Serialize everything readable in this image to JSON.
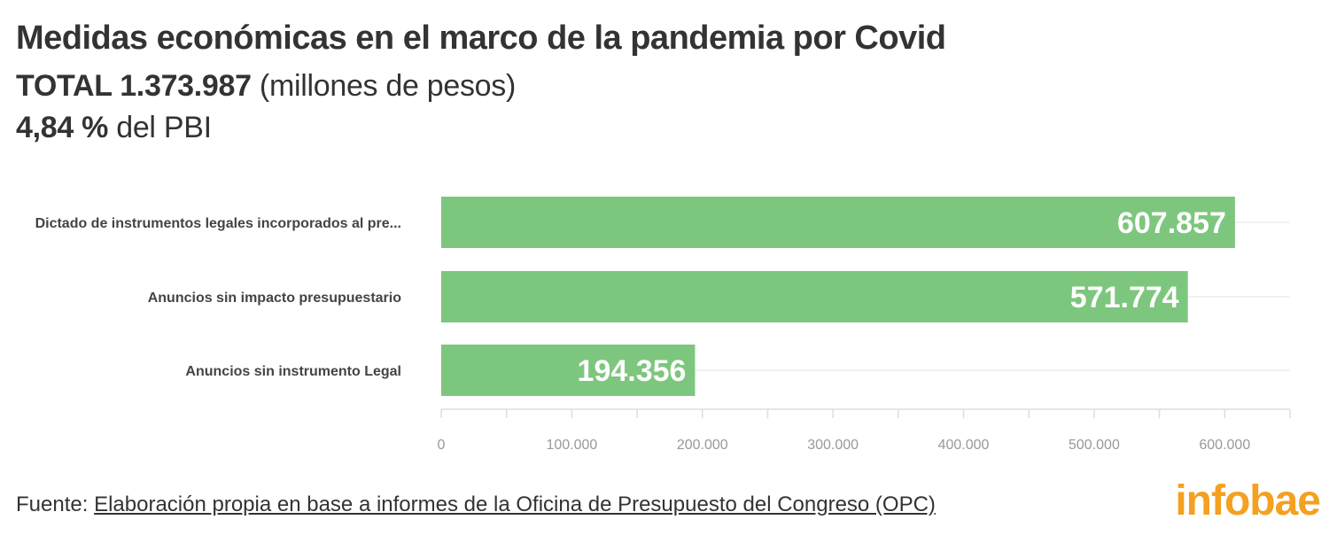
{
  "header": {
    "title": "Medidas económicas en el marco de la pandemia por Covid",
    "total_label": "TOTAL 1.373.987",
    "total_unit": "(millones de pesos)",
    "pbi_value": "4,84 %",
    "pbi_label": "del PBI"
  },
  "chart_data": {
    "type": "bar",
    "orientation": "horizontal",
    "categories": [
      "Dictado de instrumentos legales incorporados al pre...",
      "Anuncios sin impacto presupuestario",
      "Anuncios sin instrumento Legal"
    ],
    "values": [
      607857,
      571774,
      194356
    ],
    "value_labels": [
      "607.857",
      "571.774",
      "194.356"
    ],
    "xlim": [
      0,
      650000
    ],
    "ticks": [
      0,
      100000,
      200000,
      300000,
      400000,
      500000,
      600000
    ],
    "tick_labels": [
      "0",
      "100.000",
      "200.000",
      "300.000",
      "400.000",
      "500.000",
      "600.000"
    ],
    "grid": true,
    "bar_color": "#7dc67e"
  },
  "footer": {
    "source_prefix": "Fuente:",
    "source_text": "Elaboración propia en base a informes de la Oficina de Presupuesto del Congreso (OPC)"
  },
  "brand": {
    "logo_text": "infobae",
    "logo_color": "#f4a021"
  }
}
